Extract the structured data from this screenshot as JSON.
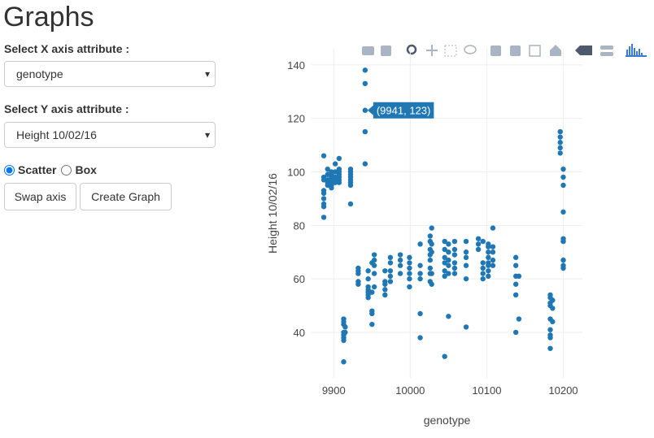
{
  "ui": {
    "title": "Graphs",
    "x_label": "Select X axis attribute :",
    "x_select": "genotype",
    "y_label": "Select Y axis attribute :",
    "y_select": "Height 10/02/16",
    "radio_scatter": "Scatter",
    "radio_box": "Box",
    "swap_button": "Swap axis",
    "create_button": "Create Graph"
  },
  "chart_data": {
    "type": "scatter",
    "x_label": "genotype",
    "y_label": "Height 10/02/16",
    "tooltip": "(9941, 123)",
    "tooltip_index": 58,
    "grid": true,
    "xlim": [
      9871,
      10225
    ],
    "ylim": [
      23,
      146
    ],
    "xticks": [
      9900,
      10000,
      10100,
      10200
    ],
    "yticks": [
      40,
      60,
      80,
      100,
      120,
      140
    ],
    "series": [
      {
        "color": "#1f77b4",
        "x": [
          9887,
          9887,
          9887,
          9887,
          9887,
          9887,
          9887,
          9887,
          9887,
          9892,
          9892,
          9892,
          9892,
          9892,
          9897,
          9897,
          9897,
          9897,
          9897,
          9897,
          9897,
          9902,
          9902,
          9902,
          9902,
          9902,
          9907,
          9907,
          9907,
          9907,
          9907,
          9907,
          9907,
          9913,
          9913,
          9913,
          9913,
          9913,
          9913,
          9913,
          9913,
          9915,
          9915,
          9922,
          9922,
          9922,
          9922,
          9922,
          9922,
          9922,
          9922,
          9932,
          9932,
          9932,
          9932,
          9932,
          9941,
          9941,
          9941,
          9941,
          9941,
          9945,
          9945,
          9945,
          9945,
          9945,
          9945,
          9945,
          9950,
          9950,
          9950,
          9950,
          9950,
          9953,
          9953,
          9953,
          9953,
          9953,
          9967,
          9967,
          9967,
          9967,
          9967,
          9974,
          9974,
          9974,
          9974,
          9974,
          9987,
          9987,
          9987,
          9987,
          9999,
          9999,
          9999,
          9999,
          9999,
          9999,
          10013,
          10013,
          10013,
          10013,
          10013,
          10013,
          10026,
          10026,
          10026,
          10026,
          10026,
          10026,
          10026,
          10026,
          10028,
          10028,
          10028,
          10028,
          10028,
          10045,
          10045,
          10045,
          10045,
          10045,
          10045,
          10045,
          10050,
          10050,
          10050,
          10050,
          10050,
          10050,
          10058,
          10058,
          10058,
          10058,
          10058,
          10058,
          10073,
          10073,
          10073,
          10073,
          10073,
          10073,
          10089,
          10089,
          10089,
          10095,
          10095,
          10095,
          10095,
          10095,
          10102,
          10102,
          10102,
          10102,
          10102,
          10102,
          10102,
          10102,
          10108,
          10108,
          10108,
          10108,
          10108,
          10138,
          10138,
          10138,
          10138,
          10138,
          10138,
          10142,
          10142,
          10183,
          10183,
          10183,
          10183,
          10183,
          10183,
          10183,
          10183,
          10183,
          10186,
          10186,
          10186,
          10196,
          10196,
          10196,
          10196,
          10196,
          10200,
          10200,
          10200,
          10200,
          10200,
          10200,
          10200,
          10200,
          10200
        ],
        "values": [
          106,
          98,
          97,
          93,
          92,
          90,
          88,
          87,
          83,
          101,
          99,
          97,
          96,
          95,
          100,
          99,
          98,
          97,
          96,
          95,
          94,
          103,
          100,
          98,
          97,
          96,
          105,
          101,
          100,
          99,
          98,
          97,
          96,
          45,
          44,
          43,
          40,
          39,
          38,
          37,
          29,
          42,
          40,
          101,
          100,
          99,
          98,
          97,
          96,
          95,
          88,
          64,
          63,
          62,
          59,
          58,
          138,
          133,
          123,
          115,
          103,
          63,
          60,
          57,
          56,
          55,
          54,
          53,
          66,
          55,
          48,
          47,
          43,
          69,
          67,
          65,
          62,
          57,
          63,
          59,
          58,
          56,
          54,
          68,
          66,
          63,
          61,
          59,
          69,
          67,
          65,
          62,
          68,
          66,
          64,
          62,
          60,
          57,
          73,
          65,
          62,
          60,
          47,
          38,
          76,
          74,
          71,
          69,
          67,
          64,
          62,
          59,
          79,
          73,
          70,
          62,
          58,
          74,
          71,
          68,
          66,
          63,
          61,
          31,
          73,
          70,
          67,
          65,
          62,
          46,
          74,
          71,
          69,
          66,
          64,
          62,
          74,
          70,
          68,
          65,
          60,
          42,
          75,
          73,
          71,
          74,
          66,
          64,
          62,
          60,
          73,
          72,
          70,
          68,
          66,
          65,
          63,
          61,
          79,
          72,
          70,
          67,
          65,
          68,
          65,
          61,
          58,
          54,
          40,
          61,
          45,
          54,
          53,
          51,
          50,
          45,
          41,
          39,
          38,
          34,
          52,
          49,
          44,
          115,
          113,
          111,
          109,
          107,
          101,
          98,
          95,
          85,
          75,
          74,
          67,
          65,
          64
        ]
      }
    ]
  }
}
